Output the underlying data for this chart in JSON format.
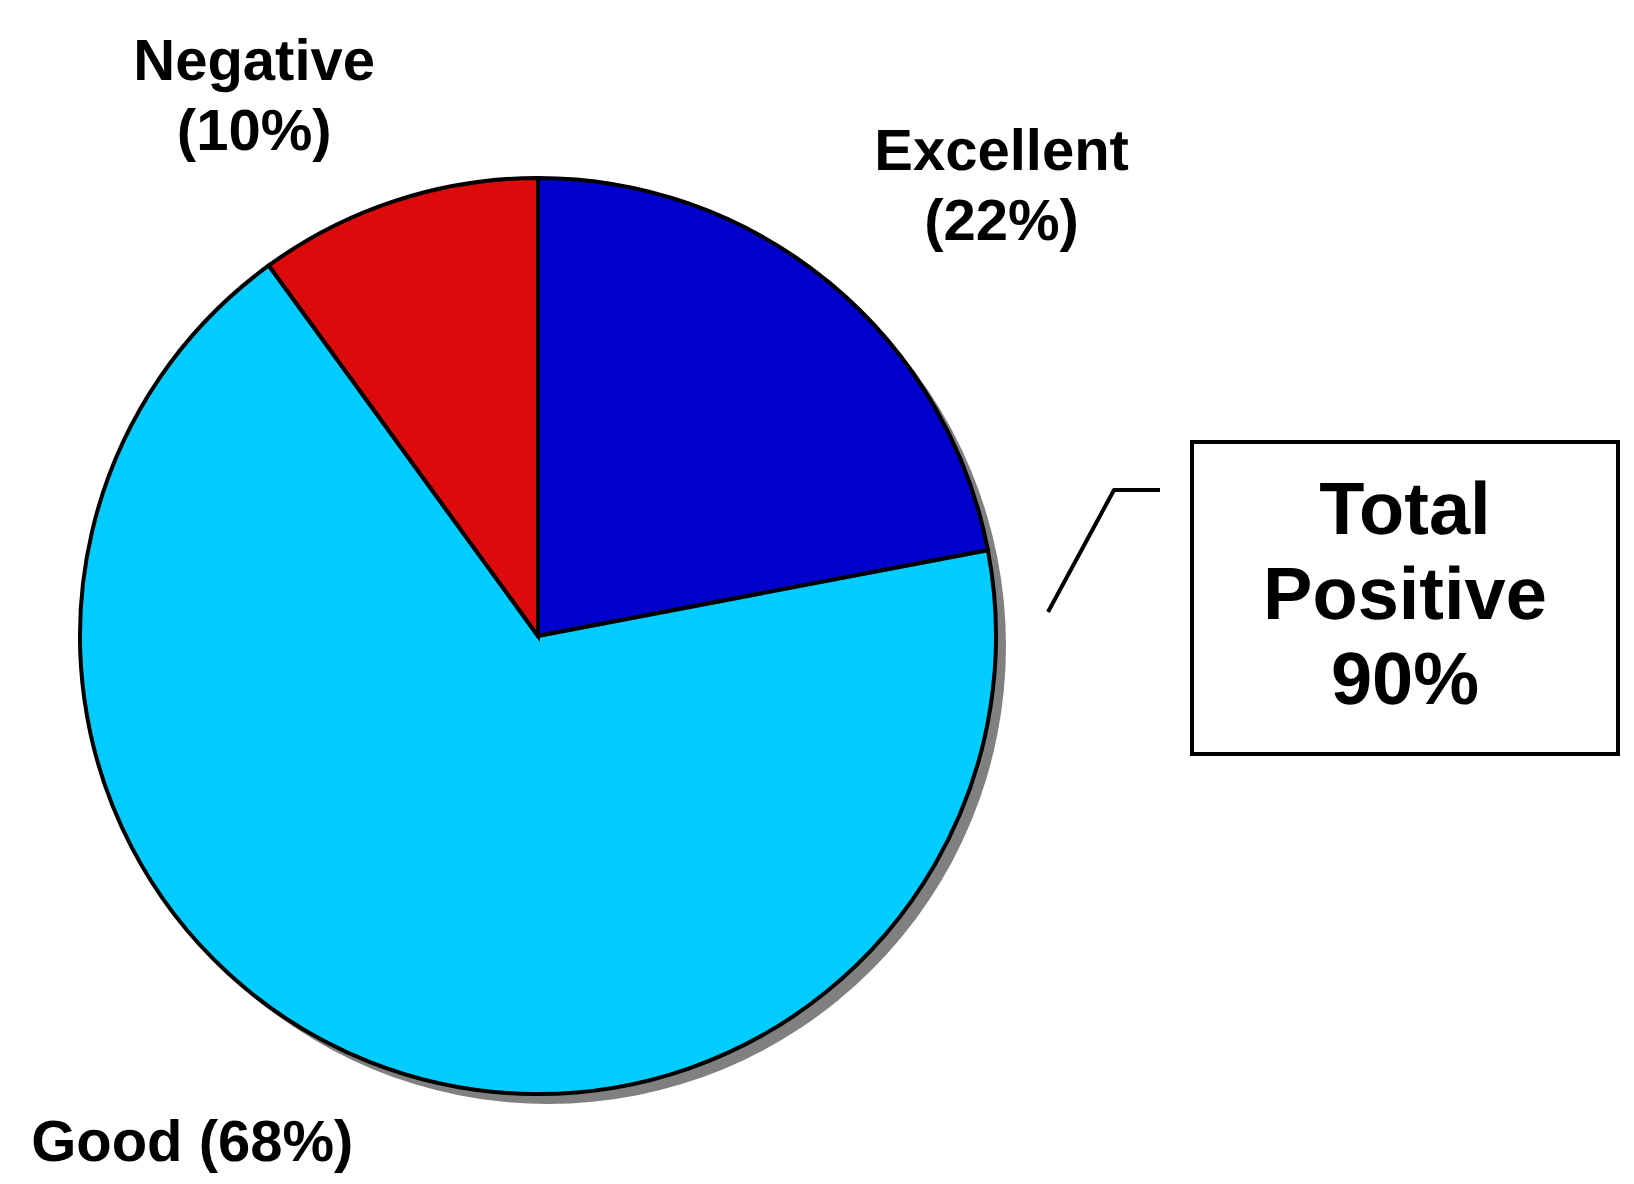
{
  "chart_data": {
    "type": "pie",
    "categories": [
      "Excellent",
      "Good",
      "Negative"
    ],
    "values": [
      22,
      68,
      10
    ],
    "colors": [
      "#0000cc",
      "#00ccff",
      "#dc0a0a"
    ],
    "value_labels": [
      "(22%)",
      "(68%)",
      "(10%)"
    ],
    "annotations": [
      "Total Positive 90%"
    ]
  }
}
